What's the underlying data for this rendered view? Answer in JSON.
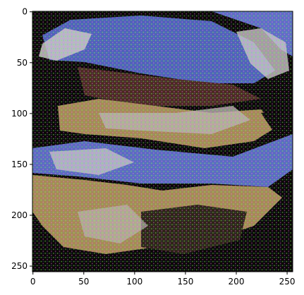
{
  "chart_data": {
    "type": "heatmap",
    "title": "",
    "xlabel": "",
    "ylabel": "",
    "xlim": [
      0,
      256
    ],
    "ylim": [
      256,
      0
    ],
    "x_ticks": [
      0,
      50,
      100,
      150,
      200,
      250
    ],
    "y_ticks": [
      0,
      50,
      100,
      150,
      200,
      250
    ],
    "image_grid": [
      256,
      256
    ],
    "colors": {
      "sky_blue": "#5f6fc4",
      "tan": "#a68a55",
      "dark_brown": "#2e2417",
      "black": "#0a0806",
      "grey_white": "#c9c7c6",
      "dark_red": "#4c2a22"
    }
  }
}
